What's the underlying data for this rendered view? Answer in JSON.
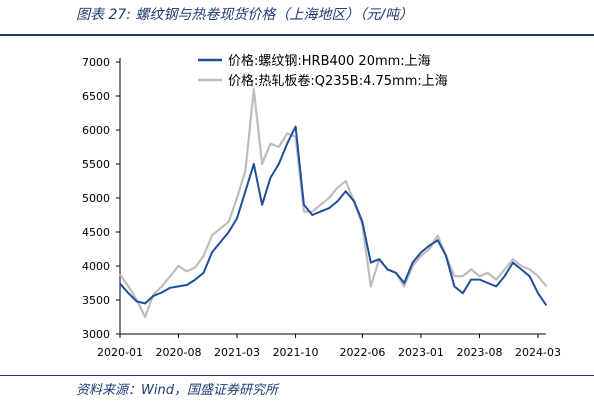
{
  "figure": {
    "title": "图表 27:  螺纹钢与热卷现货价格（上海地区）（元/吨）",
    "source": "资料来源：Wind，国盛证券研究所"
  },
  "chart_data": {
    "type": "line",
    "xlabel": "",
    "ylabel": "",
    "x_ticks": [
      "2020-01",
      "2020-08",
      "2021-03",
      "2021-10",
      "2022-06",
      "2023-01",
      "2023-08",
      "2024-03"
    ],
    "y_ticks": [
      "3000",
      "3500",
      "4000",
      "4500",
      "5000",
      "5500",
      "6000",
      "6500",
      "7000"
    ],
    "ylim": [
      3000,
      7000
    ],
    "grid": false,
    "legend_position": "top-center",
    "series": [
      {
        "name": "价格:螺纹钢:HRB400 20mm:上海",
        "color": "#1f4e9c",
        "points": [
          [
            "2020-01",
            3740
          ],
          [
            "2020-02",
            3600
          ],
          [
            "2020-03",
            3480
          ],
          [
            "2020-04",
            3450
          ],
          [
            "2020-05",
            3560
          ],
          [
            "2020-06",
            3610
          ],
          [
            "2020-07",
            3680
          ],
          [
            "2020-08",
            3700
          ],
          [
            "2020-09",
            3720
          ],
          [
            "2020-10",
            3800
          ],
          [
            "2020-11",
            3900
          ],
          [
            "2020-12",
            4200
          ],
          [
            "2021-01",
            4350
          ],
          [
            "2021-02",
            4500
          ],
          [
            "2021-03",
            4700
          ],
          [
            "2021-04",
            5100
          ],
          [
            "2021-05",
            5500
          ],
          [
            "2021-06",
            4900
          ],
          [
            "2021-07",
            5300
          ],
          [
            "2021-08",
            5500
          ],
          [
            "2021-09",
            5800
          ],
          [
            "2021-10",
            6050
          ],
          [
            "2021-11",
            4900
          ],
          [
            "2021-12",
            4750
          ],
          [
            "2022-01",
            4800
          ],
          [
            "2022-02",
            4850
          ],
          [
            "2022-03",
            4950
          ],
          [
            "2022-04",
            5100
          ],
          [
            "2022-05",
            4950
          ],
          [
            "2022-06",
            4650
          ],
          [
            "2022-07",
            4050
          ],
          [
            "2022-08",
            4100
          ],
          [
            "2022-09",
            3950
          ],
          [
            "2022-10",
            3900
          ],
          [
            "2022-11",
            3750
          ],
          [
            "2022-12",
            4050
          ],
          [
            "2023-01",
            4200
          ],
          [
            "2023-02",
            4300
          ],
          [
            "2023-03",
            4380
          ],
          [
            "2023-04",
            4150
          ],
          [
            "2023-05",
            3700
          ],
          [
            "2023-06",
            3600
          ],
          [
            "2023-07",
            3800
          ],
          [
            "2023-08",
            3800
          ],
          [
            "2023-09",
            3750
          ],
          [
            "2023-10",
            3700
          ],
          [
            "2023-11",
            3850
          ],
          [
            "2023-12",
            4050
          ],
          [
            "2024-01",
            3950
          ],
          [
            "2024-02",
            3850
          ],
          [
            "2024-03",
            3600
          ],
          [
            "2024-04",
            3420
          ]
        ]
      },
      {
        "name": "价格:热轧板卷:Q235B:4.75mm:上海",
        "color": "#bdbdbd",
        "points": [
          [
            "2020-01",
            3880
          ],
          [
            "2020-02",
            3700
          ],
          [
            "2020-03",
            3500
          ],
          [
            "2020-04",
            3250
          ],
          [
            "2020-05",
            3580
          ],
          [
            "2020-06",
            3700
          ],
          [
            "2020-07",
            3850
          ],
          [
            "2020-08",
            4000
          ],
          [
            "2020-09",
            3920
          ],
          [
            "2020-10",
            3980
          ],
          [
            "2020-11",
            4150
          ],
          [
            "2020-12",
            4450
          ],
          [
            "2021-01",
            4550
          ],
          [
            "2021-02",
            4650
          ],
          [
            "2021-03",
            5000
          ],
          [
            "2021-04",
            5400
          ],
          [
            "2021-05",
            6600
          ],
          [
            "2021-06",
            5500
          ],
          [
            "2021-07",
            5800
          ],
          [
            "2021-08",
            5750
          ],
          [
            "2021-09",
            5950
          ],
          [
            "2021-10",
            5900
          ],
          [
            "2021-11",
            4800
          ],
          [
            "2021-12",
            4800
          ],
          [
            "2022-01",
            4900
          ],
          [
            "2022-02",
            5000
          ],
          [
            "2022-03",
            5150
          ],
          [
            "2022-04",
            5250
          ],
          [
            "2022-05",
            4950
          ],
          [
            "2022-06",
            4600
          ],
          [
            "2022-07",
            3700
          ],
          [
            "2022-08",
            4100
          ],
          [
            "2022-09",
            3950
          ],
          [
            "2022-10",
            3900
          ],
          [
            "2022-11",
            3700
          ],
          [
            "2022-12",
            4000
          ],
          [
            "2023-01",
            4150
          ],
          [
            "2023-02",
            4250
          ],
          [
            "2023-03",
            4450
          ],
          [
            "2023-04",
            4150
          ],
          [
            "2023-05",
            3850
          ],
          [
            "2023-06",
            3850
          ],
          [
            "2023-07",
            3950
          ],
          [
            "2023-08",
            3850
          ],
          [
            "2023-09",
            3900
          ],
          [
            "2023-10",
            3800
          ],
          [
            "2023-11",
            3950
          ],
          [
            "2023-12",
            4100
          ],
          [
            "2024-01",
            4000
          ],
          [
            "2024-02",
            3950
          ],
          [
            "2024-03",
            3850
          ],
          [
            "2024-04",
            3700
          ]
        ]
      }
    ]
  }
}
